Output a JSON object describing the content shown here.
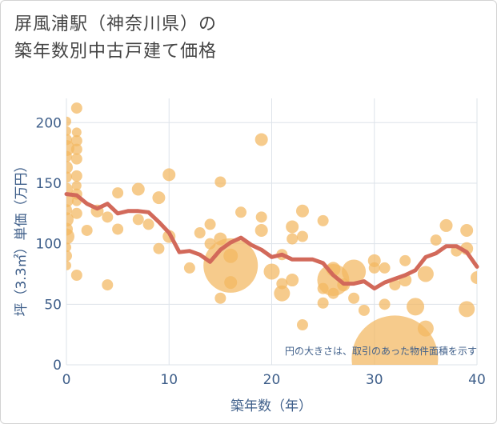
{
  "title": {
    "line1": "屏風浦駅（神奈川県）の",
    "line2": "築年数別中古戸建て価格"
  },
  "chart_data": {
    "type": "scatter",
    "xlabel": "築年数（年）",
    "ylabel": "坪（3.3㎡）単価（万円）",
    "xlim": [
      0,
      40
    ],
    "ylim": [
      0,
      220
    ],
    "xticks": [
      0,
      10,
      20,
      30,
      40
    ],
    "yticks": [
      0,
      50,
      100,
      150,
      200
    ],
    "grid": true,
    "note": "円の大きさは、取引のあった物件面積を示す",
    "colors": {
      "bubble": "#f3b75f",
      "line": "#d2695a",
      "grid": "#dde3ea",
      "text": "#3f5f8a"
    },
    "trend": {
      "x": [
        0,
        1,
        2,
        3,
        4,
        5,
        6,
        7,
        8,
        9,
        10,
        11,
        12,
        13,
        14,
        15,
        16,
        17,
        18,
        19,
        20,
        21,
        22,
        23,
        24,
        25,
        26,
        27,
        28,
        29,
        30,
        31,
        32,
        33,
        34,
        35,
        36,
        37,
        38,
        39,
        40
      ],
      "y": [
        141,
        140,
        133,
        129,
        133,
        125,
        127,
        127,
        126,
        118,
        109,
        93,
        94,
        91,
        85,
        95,
        101,
        105,
        99,
        95,
        89,
        91,
        87,
        87,
        87,
        84,
        74,
        67,
        67,
        69,
        63,
        68,
        71,
        74,
        78,
        89,
        92,
        98,
        98,
        93,
        81
      ]
    },
    "points": [
      {
        "x": 0,
        "y": 201,
        "s": 6
      },
      {
        "x": 0,
        "y": 193,
        "s": 6
      },
      {
        "x": 0,
        "y": 186,
        "s": 7
      },
      {
        "x": 0,
        "y": 179,
        "s": 10
      },
      {
        "x": 0,
        "y": 172,
        "s": 7
      },
      {
        "x": 0,
        "y": 163,
        "s": 8
      },
      {
        "x": 0,
        "y": 155,
        "s": 7
      },
      {
        "x": 0,
        "y": 145,
        "s": 8
      },
      {
        "x": 0,
        "y": 136,
        "s": 9
      },
      {
        "x": 0,
        "y": 128,
        "s": 7
      },
      {
        "x": 0,
        "y": 120,
        "s": 9
      },
      {
        "x": 0,
        "y": 112,
        "s": 8
      },
      {
        "x": 0,
        "y": 106,
        "s": 10
      },
      {
        "x": 0,
        "y": 97,
        "s": 6
      },
      {
        "x": 0,
        "y": 90,
        "s": 7
      },
      {
        "x": 0,
        "y": 82,
        "s": 6
      },
      {
        "x": 1,
        "y": 212,
        "s": 7
      },
      {
        "x": 1,
        "y": 192,
        "s": 6
      },
      {
        "x": 1,
        "y": 185,
        "s": 7
      },
      {
        "x": 1,
        "y": 178,
        "s": 7
      },
      {
        "x": 1,
        "y": 170,
        "s": 7
      },
      {
        "x": 1,
        "y": 156,
        "s": 7
      },
      {
        "x": 1,
        "y": 148,
        "s": 6
      },
      {
        "x": 1,
        "y": 141,
        "s": 7
      },
      {
        "x": 1,
        "y": 135,
        "s": 6
      },
      {
        "x": 1,
        "y": 125,
        "s": 7
      },
      {
        "x": 1,
        "y": 74,
        "s": 7
      },
      {
        "x": 2,
        "y": 111,
        "s": 7
      },
      {
        "x": 3,
        "y": 127,
        "s": 8
      },
      {
        "x": 4,
        "y": 122,
        "s": 7
      },
      {
        "x": 4,
        "y": 66,
        "s": 7
      },
      {
        "x": 5,
        "y": 142,
        "s": 7
      },
      {
        "x": 5,
        "y": 112,
        "s": 7
      },
      {
        "x": 7,
        "y": 145,
        "s": 8
      },
      {
        "x": 7,
        "y": 120,
        "s": 7
      },
      {
        "x": 8,
        "y": 116,
        "s": 7
      },
      {
        "x": 9,
        "y": 138,
        "s": 8
      },
      {
        "x": 9,
        "y": 96,
        "s": 7
      },
      {
        "x": 10,
        "y": 157,
        "s": 8
      },
      {
        "x": 10,
        "y": 106,
        "s": 8
      },
      {
        "x": 12,
        "y": 80,
        "s": 7
      },
      {
        "x": 13,
        "y": 109,
        "s": 7
      },
      {
        "x": 14,
        "y": 116,
        "s": 7
      },
      {
        "x": 14,
        "y": 100,
        "s": 7
      },
      {
        "x": 15,
        "y": 151,
        "s": 7
      },
      {
        "x": 15,
        "y": 104,
        "s": 8
      },
      {
        "x": 15,
        "y": 55,
        "s": 7
      },
      {
        "x": 16,
        "y": 82,
        "s": 34
      },
      {
        "x": 16,
        "y": 90,
        "s": 9
      },
      {
        "x": 16,
        "y": 68,
        "s": 8
      },
      {
        "x": 17,
        "y": 126,
        "s": 7
      },
      {
        "x": 19,
        "y": 186,
        "s": 8
      },
      {
        "x": 19,
        "y": 122,
        "s": 7
      },
      {
        "x": 19,
        "y": 111,
        "s": 8
      },
      {
        "x": 20,
        "y": 77,
        "s": 10
      },
      {
        "x": 21,
        "y": 91,
        "s": 7
      },
      {
        "x": 21,
        "y": 67,
        "s": 7
      },
      {
        "x": 21,
        "y": 59,
        "s": 10
      },
      {
        "x": 22,
        "y": 114,
        "s": 8
      },
      {
        "x": 22,
        "y": 104,
        "s": 7
      },
      {
        "x": 22,
        "y": 70,
        "s": 8
      },
      {
        "x": 23,
        "y": 127,
        "s": 8
      },
      {
        "x": 23,
        "y": 106,
        "s": 7
      },
      {
        "x": 23,
        "y": 33,
        "s": 7
      },
      {
        "x": 25,
        "y": 119,
        "s": 7
      },
      {
        "x": 25,
        "y": 63,
        "s": 7
      },
      {
        "x": 25,
        "y": 51,
        "s": 7
      },
      {
        "x": 26,
        "y": 59,
        "s": 7
      },
      {
        "x": 26,
        "y": 79,
        "s": 9
      },
      {
        "x": 26,
        "y": 70,
        "s": 20
      },
      {
        "x": 27,
        "y": 66,
        "s": 8
      },
      {
        "x": 28,
        "y": 77,
        "s": 15
      },
      {
        "x": 28,
        "y": 55,
        "s": 7
      },
      {
        "x": 29,
        "y": 45,
        "s": 7
      },
      {
        "x": 30,
        "y": 86,
        "s": 8
      },
      {
        "x": 30,
        "y": 80,
        "s": 7
      },
      {
        "x": 31,
        "y": 80,
        "s": 7
      },
      {
        "x": 31,
        "y": 50,
        "s": 7
      },
      {
        "x": 32,
        "y": 5,
        "s": 54
      },
      {
        "x": 32,
        "y": 66,
        "s": 7
      },
      {
        "x": 33,
        "y": 70,
        "s": 8
      },
      {
        "x": 33,
        "y": 86,
        "s": 7
      },
      {
        "x": 34,
        "y": 48,
        "s": 11
      },
      {
        "x": 35,
        "y": 75,
        "s": 10
      },
      {
        "x": 35,
        "y": 30,
        "s": 10
      },
      {
        "x": 36,
        "y": 103,
        "s": 7
      },
      {
        "x": 37,
        "y": 115,
        "s": 8
      },
      {
        "x": 38,
        "y": 94,
        "s": 7
      },
      {
        "x": 39,
        "y": 111,
        "s": 8
      },
      {
        "x": 39,
        "y": 96,
        "s": 8
      },
      {
        "x": 39,
        "y": 46,
        "s": 10
      },
      {
        "x": 40,
        "y": 72,
        "s": 8
      }
    ]
  }
}
